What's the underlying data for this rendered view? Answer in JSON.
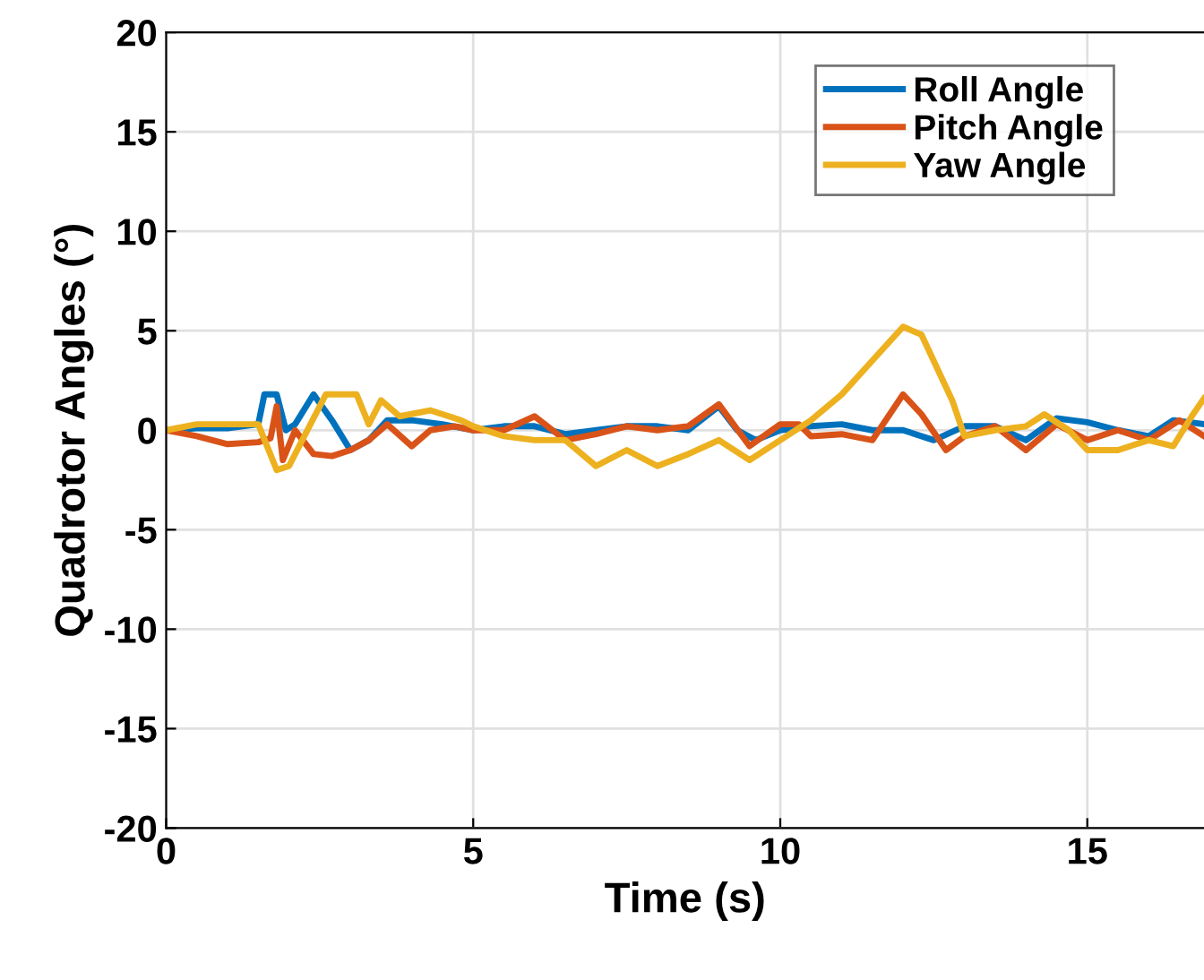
{
  "chart_data": {
    "type": "line",
    "xlabel": "Time (s)",
    "ylabel": "Quadrotor Angles (°)",
    "xlim": [
      0,
      16.9
    ],
    "ylim": [
      -20,
      20
    ],
    "xticks": [
      0,
      5,
      10,
      15
    ],
    "yticks": [
      -20,
      -15,
      -10,
      -5,
      0,
      5,
      10,
      15,
      20
    ],
    "grid": true,
    "legend": "top right",
    "line_style": "solid",
    "marker": "none",
    "series": [
      {
        "name": "Roll Angle",
        "color": "#0072bd",
        "x": [
          0,
          0.5,
          1,
          1.5,
          1.6,
          1.8,
          1.95,
          2.1,
          2.4,
          2.7,
          3.0,
          3.3,
          3.6,
          4,
          4.5,
          5,
          5.5,
          6,
          6.5,
          7,
          7.5,
          8,
          8.5,
          9,
          9.3,
          9.6,
          10,
          10.5,
          11,
          11.5,
          12,
          12.5,
          13,
          13.5,
          14,
          14.5,
          15,
          15.5,
          16,
          16.4,
          16.9
        ],
        "values": [
          0,
          0.1,
          0.1,
          0.3,
          1.8,
          1.8,
          0,
          0.3,
          1.8,
          0.5,
          -1,
          -0.5,
          0.5,
          0.5,
          0.3,
          0,
          0.2,
          0.2,
          -0.2,
          0,
          0.2,
          0.2,
          0,
          1.2,
          0,
          -0.5,
          0,
          0.2,
          0.3,
          0,
          0,
          -0.5,
          0.2,
          0.2,
          -0.5,
          0.6,
          0.4,
          0,
          -0.3,
          0.5,
          0.3
        ]
      },
      {
        "name": "Pitch Angle",
        "color": "#d95319",
        "x": [
          0,
          0.5,
          1,
          1.5,
          1.7,
          1.8,
          1.9,
          2.1,
          2.4,
          2.7,
          3.0,
          3.3,
          3.6,
          4.0,
          4.3,
          4.7,
          5,
          5.5,
          6,
          6.5,
          7,
          7.5,
          8,
          8.5,
          9,
          9.5,
          10,
          10.3,
          10.5,
          11,
          11.5,
          12,
          12.3,
          12.7,
          13,
          13.5,
          14,
          14.5,
          15,
          15.5,
          16,
          16.5,
          16.9
        ],
        "values": [
          0,
          -0.3,
          -0.7,
          -0.6,
          -0.4,
          1.2,
          -1.5,
          0,
          -1.2,
          -1.3,
          -1.0,
          -0.5,
          0.3,
          -0.8,
          0,
          0.2,
          0,
          0,
          0.7,
          -0.5,
          -0.2,
          0.2,
          0,
          0.2,
          1.3,
          -0.8,
          0.3,
          0.3,
          -0.3,
          -0.2,
          -0.5,
          1.8,
          0.8,
          -1.0,
          -0.3,
          0.2,
          -1.0,
          0.3,
          -0.5,
          0,
          -0.5,
          0.5,
          -0.3
        ]
      },
      {
        "name": "Yaw Angle",
        "color": "#edb120",
        "x": [
          0,
          0.5,
          1,
          1.5,
          1.8,
          2.0,
          2.3,
          2.6,
          3.1,
          3.3,
          3.5,
          3.8,
          4.3,
          4.8,
          5,
          5.5,
          6,
          6.5,
          7,
          7.5,
          8,
          8.5,
          9,
          9.5,
          10,
          10.5,
          11,
          11.5,
          12,
          12.3,
          12.8,
          13,
          13.5,
          14,
          14.3,
          14.7,
          15,
          15.5,
          16,
          16.4,
          16.7,
          16.9
        ],
        "values": [
          0,
          0.3,
          0.3,
          0.3,
          -2.0,
          -1.8,
          0,
          1.8,
          1.8,
          0.3,
          1.5,
          0.7,
          1.0,
          0.5,
          0.2,
          -0.3,
          -0.5,
          -0.5,
          -1.8,
          -1.0,
          -1.8,
          -1.2,
          -0.5,
          -1.5,
          -0.5,
          0.5,
          1.8,
          3.5,
          5.2,
          4.8,
          1.5,
          -0.3,
          0,
          0.2,
          0.8,
          0,
          -1.0,
          -1.0,
          -0.5,
          -0.8,
          0.7,
          1.6
        ]
      }
    ]
  }
}
